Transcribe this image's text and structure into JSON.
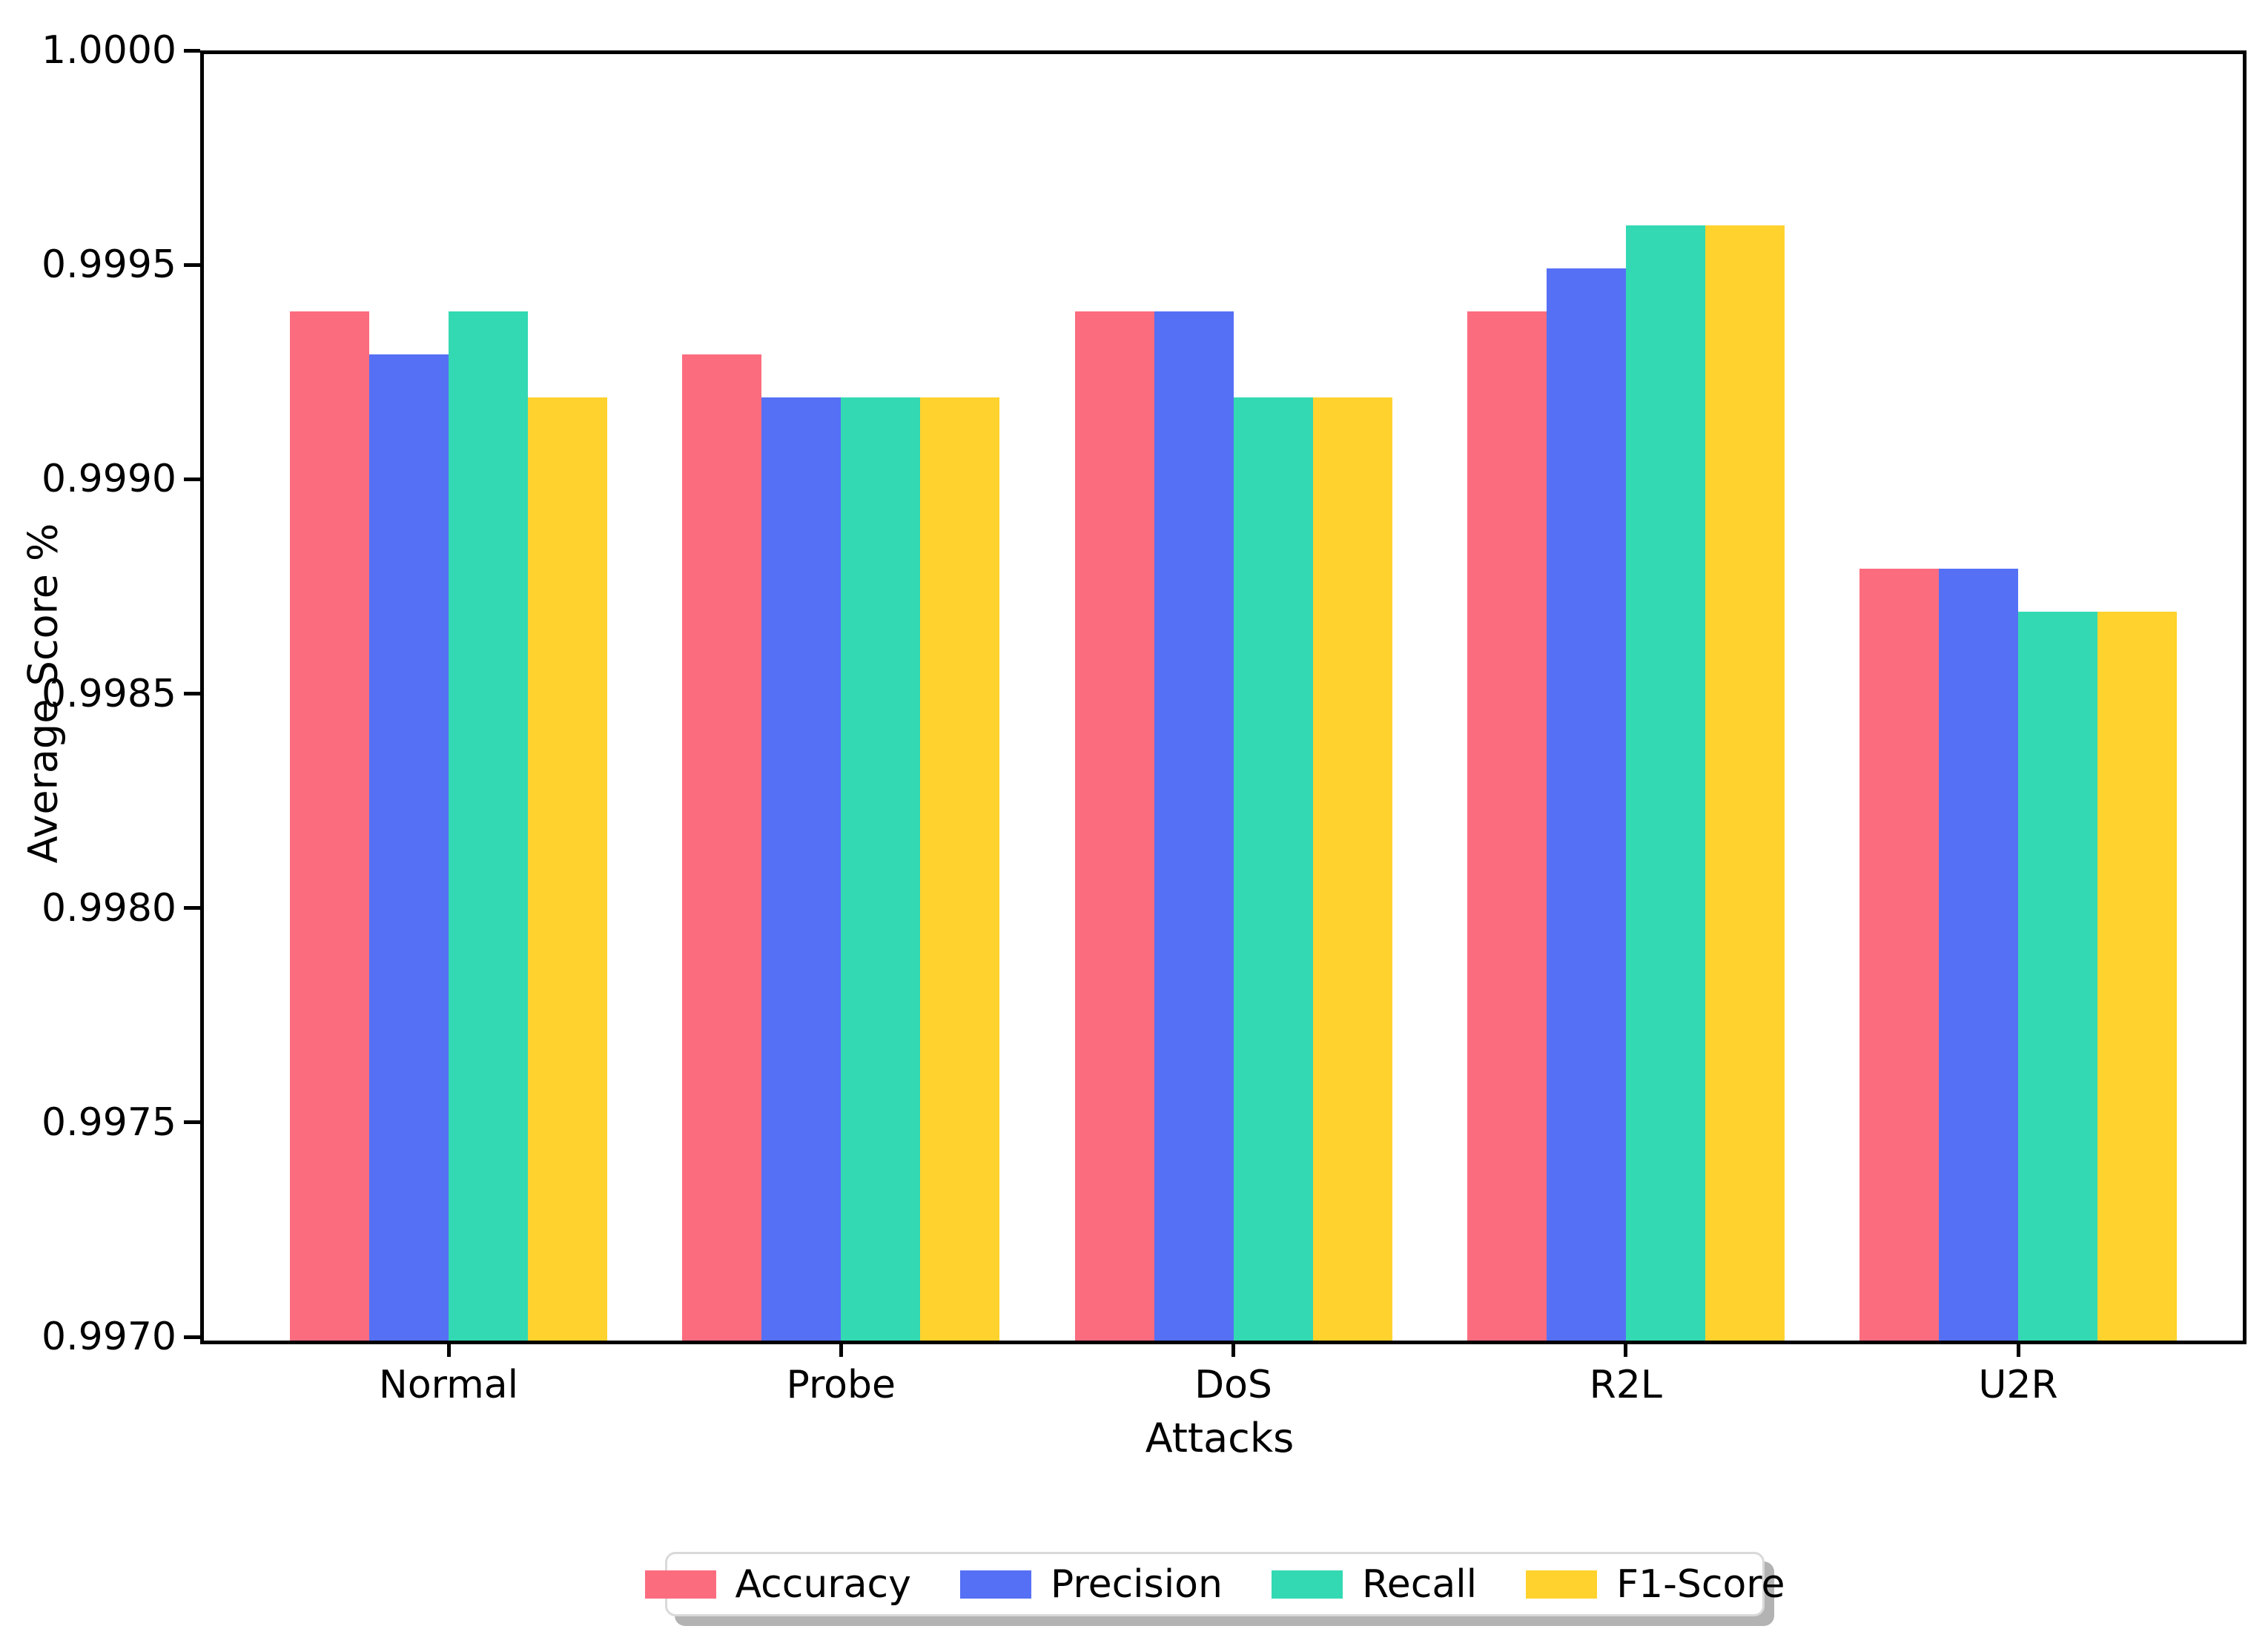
{
  "chart_data": {
    "type": "bar",
    "title": "",
    "xlabel": "Attacks",
    "ylabel": "Average Score %",
    "categories": [
      "Normal",
      "Probe",
      "DoS",
      "R2L",
      "U2R"
    ],
    "series": [
      {
        "name": "Accuracy",
        "color": "#FC6C7F",
        "values": [
          0.9994,
          0.9993,
          0.9994,
          0.9994,
          0.9988
        ]
      },
      {
        "name": "Precision",
        "color": "#5570F5",
        "values": [
          0.9993,
          0.9992,
          0.9994,
          0.9995,
          0.9988
        ]
      },
      {
        "name": "Recall",
        "color": "#33D9B2",
        "values": [
          0.9994,
          0.9992,
          0.9992,
          0.9996,
          0.9987
        ]
      },
      {
        "name": "F1-Score",
        "color": "#FFD22D",
        "values": [
          0.9992,
          0.9992,
          0.9992,
          0.9996,
          0.9987
        ]
      }
    ],
    "ylim": [
      0.997,
      1.0
    ],
    "yticks": [
      "1.0000",
      "0.9995",
      "0.9990",
      "0.9985",
      "0.9980",
      "0.9975",
      "0.9970"
    ],
    "grid": false,
    "legend_position": "bottom-center",
    "axis_color": "#000000",
    "background_color": "#ffffff",
    "legend_border_color": "#d9d9d9",
    "legend_shadow_color": "#b3b3b3"
  }
}
